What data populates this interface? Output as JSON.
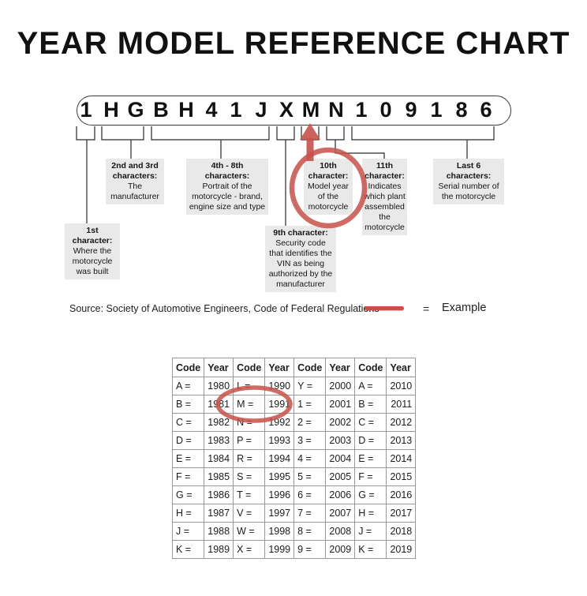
{
  "title": "YEAR MODEL REFERENCE CHART",
  "vin": {
    "characters": [
      "1",
      "H",
      "G",
      "B",
      "H",
      "4",
      "1",
      "J",
      "X",
      "M",
      "N",
      "1",
      "0",
      "9",
      "1",
      "8",
      "6"
    ]
  },
  "callouts": {
    "first": {
      "title": "1st\ncharacter:",
      "body": "Where the\nmotorcycle\nwas built"
    },
    "second_third": {
      "title": "2nd and 3rd\ncharacters:",
      "body": "The\nmanufacturer"
    },
    "fourth_eighth": {
      "title": "4th - 8th\ncharacters:",
      "body": "Portrait of the\nmotorcycle - brand,\nengine size and type"
    },
    "ninth": {
      "title": "9th character:",
      "body": "Security code\nthat identifies the\nVIN as being\nauthorized by the\nmanufacturer"
    },
    "tenth": {
      "title": "10th\ncharacter:",
      "body": "Model year\nof the\nmotorcycle"
    },
    "eleventh": {
      "title": "11th\ncharacter:",
      "body": "Indicates\nwhich plant\nassembled\nthe\nmotorcycle"
    },
    "last_six": {
      "title": "Last 6\ncharacters:",
      "body": "Serial number of\nthe motorcycle"
    }
  },
  "source": {
    "text": "Source:  Society of Automotive Engineers, Code of Federal Regulations"
  },
  "legend": {
    "equals": "=",
    "label": "Example"
  },
  "year_table": {
    "headers": [
      "Code",
      "Year",
      "Code",
      "Year",
      "Code",
      "Year",
      "Code",
      "Year"
    ],
    "rows": [
      [
        "A =",
        "1980",
        "L =",
        "1990",
        "Y =",
        "2000",
        "A =",
        "2010"
      ],
      [
        "B =",
        "1981",
        "M =",
        "1991",
        "1 =",
        "2001",
        "B =",
        "2011"
      ],
      [
        "C =",
        "1982",
        "N =",
        "1992",
        "2 =",
        "2002",
        "C =",
        "2012"
      ],
      [
        "D =",
        "1983",
        "P =",
        "1993",
        "3 =",
        "2003",
        "D =",
        "2013"
      ],
      [
        "E =",
        "1984",
        "R =",
        "1994",
        "4 =",
        "2004",
        "E =",
        "2014"
      ],
      [
        "F =",
        "1985",
        "S =",
        "1995",
        "5 =",
        "2005",
        "F =",
        "2015"
      ],
      [
        "G =",
        "1986",
        "T =",
        "1996",
        "6 =",
        "2006",
        "G =",
        "2016"
      ],
      [
        "H =",
        "1987",
        "V =",
        "1997",
        "7 =",
        "2007",
        "H =",
        "2017"
      ],
      [
        "J =",
        "1988",
        "W =",
        "1998",
        "8 =",
        "2008",
        "J =",
        "2018"
      ],
      [
        "K =",
        "1989",
        "X =",
        "1999",
        "9 =",
        "2009",
        "K =",
        "2019"
      ]
    ],
    "highlighted_cells": [
      "M =",
      "1991"
    ]
  },
  "colors": {
    "accent_red": "#c5514a",
    "callout_bg": "#e9e9e9",
    "table_border": "#999999"
  }
}
